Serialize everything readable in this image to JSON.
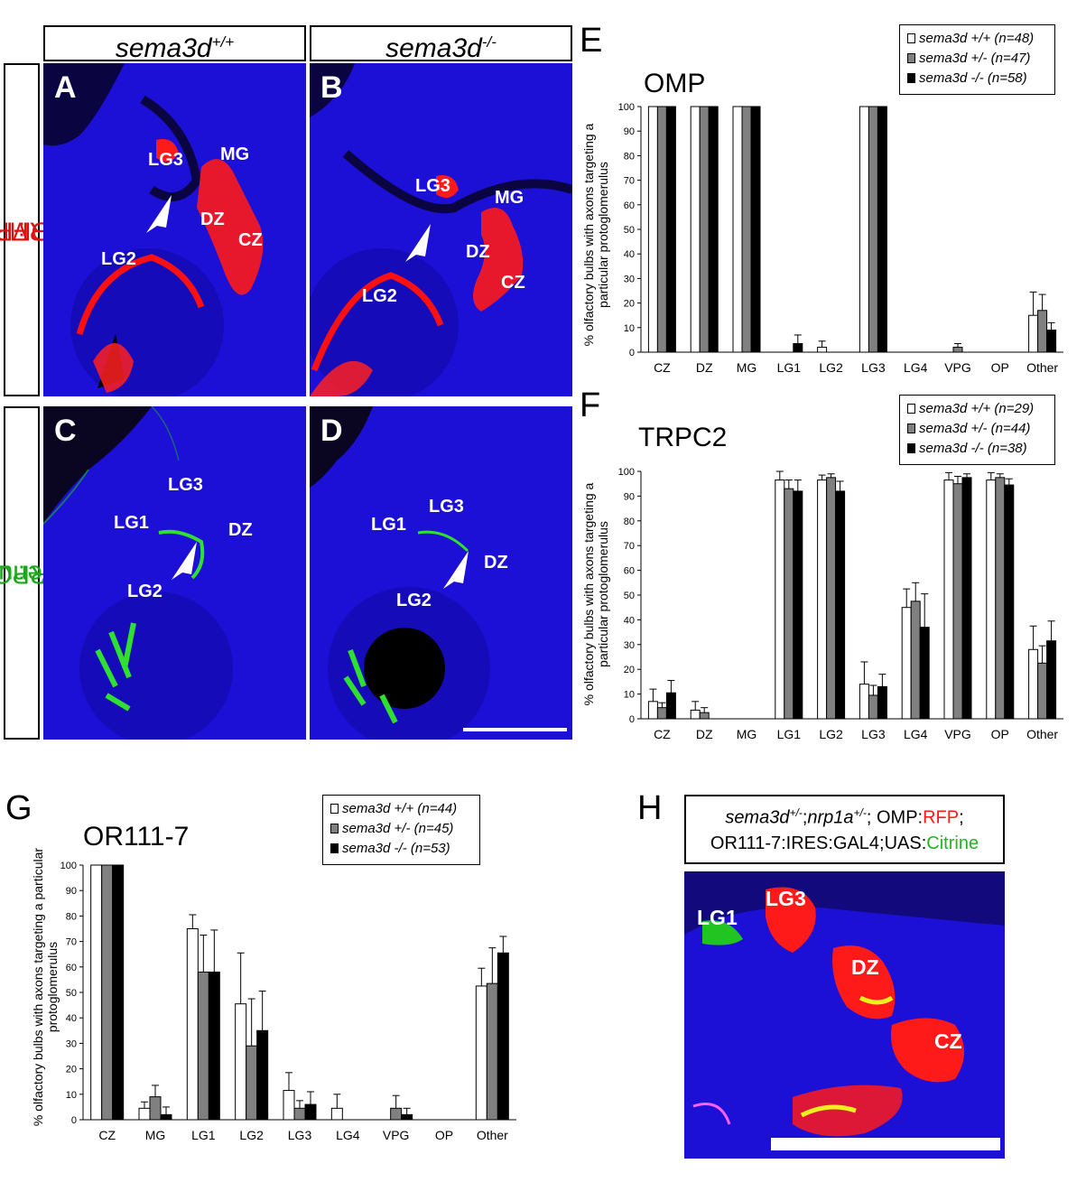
{
  "headers": {
    "wt": {
      "base": "sema3d",
      "sup": "+/+"
    },
    "mut": {
      "base": "sema3d",
      "sup": "-/-"
    }
  },
  "side_labels": {
    "omp": {
      "name": "OMP",
      "sep": ":",
      "reporter": "RFP"
    },
    "trpc2": {
      "name": "TRPC2",
      "sep": ":",
      "reporter": "Venus"
    }
  },
  "panels": {
    "A": {
      "letter": "A",
      "labels": [
        "LG3",
        "MG",
        "DZ",
        "CZ",
        "LG2"
      ]
    },
    "B": {
      "letter": "B",
      "labels": [
        "LG3",
        "MG",
        "DZ",
        "CZ",
        "LG2"
      ]
    },
    "C": {
      "letter": "C",
      "labels": [
        "LG3",
        "LG1",
        "DZ",
        "LG2"
      ]
    },
    "D": {
      "letter": "D",
      "labels": [
        "LG1",
        "LG3",
        "DZ",
        "LG2"
      ]
    },
    "E": {
      "letter": "E"
    },
    "F": {
      "letter": "F"
    },
    "G": {
      "letter": "G"
    },
    "H": {
      "letter": "H",
      "labels": [
        "LG1",
        "LG3",
        "DZ",
        "CZ"
      ]
    }
  },
  "panel_h_box": {
    "line1_gene1": "sema3d",
    "line1_sup1": "+/-",
    "line1_sep": ";",
    "line1_gene2": "nrp1a",
    "line1_sup2": "+/-",
    "line1_omp": "; OMP:",
    "line1_rfp": "RFP",
    "line1_end": ";",
    "line2_prefix": "OR111-7:IRES:GAL4;UAS:",
    "line2_citrine": "Citrine"
  },
  "colors": {
    "wt": "#ffffff",
    "het": "#808080",
    "hom": "#000000",
    "rfp": "#ff1a1a",
    "citrine": "#22b422",
    "tissue": "#1c0fd6"
  },
  "chart_data": [
    {
      "id": "E",
      "type": "bar",
      "title": "OMP",
      "ylabel": "% olfactory bulbs with axons targeting a particular protoglomerulus",
      "ylim": [
        0,
        100
      ],
      "yticks": [
        0,
        10,
        20,
        30,
        40,
        50,
        60,
        70,
        80,
        90,
        100
      ],
      "categories": [
        "CZ",
        "DZ",
        "MG",
        "LG1",
        "LG2",
        "LG3",
        "LG4",
        "VPG",
        "OP",
        "Other"
      ],
      "legend_position": "top-right",
      "series": [
        {
          "name": "sema3d +/+ (n=48)",
          "gene": "sema3d",
          "genotype": "+/+ (n=48)",
          "color": "#ffffff",
          "values": [
            100,
            100,
            100,
            0,
            2,
            100,
            0,
            0,
            0,
            15
          ],
          "errors": [
            0,
            0,
            0,
            0,
            2.5,
            0,
            0,
            0,
            0,
            9.5
          ]
        },
        {
          "name": "sema3d +/- (n=47)",
          "gene": "sema3d",
          "genotype": "+/- (n=47)",
          "color": "#808080",
          "values": [
            100,
            100,
            100,
            0,
            0,
            100,
            0,
            2,
            0,
            17
          ],
          "errors": [
            0,
            0,
            0,
            0,
            0,
            0,
            0,
            1.5,
            0,
            6.5
          ]
        },
        {
          "name": "sema3d -/- (n=58)",
          "gene": "sema3d",
          "genotype": "-/- (n=58)",
          "color": "#000000",
          "values": [
            100,
            100,
            100,
            3.5,
            0,
            100,
            0,
            0,
            0,
            9
          ],
          "errors": [
            0,
            0,
            0,
            3.5,
            0,
            0,
            0,
            0,
            0,
            3
          ]
        }
      ]
    },
    {
      "id": "F",
      "type": "bar",
      "title": "TRPC2",
      "ylabel": "% olfactory bulbs with axons targeting a particular protoglomerulus",
      "ylim": [
        0,
        100
      ],
      "yticks": [
        0,
        10,
        20,
        30,
        40,
        50,
        60,
        70,
        80,
        90,
        100
      ],
      "categories": [
        "CZ",
        "DZ",
        "MG",
        "LG1",
        "LG2",
        "LG3",
        "LG4",
        "VPG",
        "OP",
        "Other"
      ],
      "legend_position": "top-right",
      "series": [
        {
          "name": "sema3d +/+ (n=29)",
          "gene": "sema3d",
          "genotype": "+/+ (n=29)",
          "color": "#ffffff",
          "values": [
            7,
            3.5,
            0,
            96.5,
            96.5,
            14,
            45,
            96.5,
            96.5,
            28
          ],
          "errors": [
            5,
            3.5,
            0,
            3.5,
            2,
            9,
            7.5,
            3,
            3,
            9.5
          ]
        },
        {
          "name": "sema3d +/- (n=44)",
          "gene": "sema3d",
          "genotype": "+/- (n=44)",
          "color": "#808080",
          "values": [
            4.5,
            2.5,
            0,
            93,
            97.5,
            9.5,
            47.5,
            95,
            97.5,
            22.5
          ],
          "errors": [
            2,
            2,
            0,
            3.5,
            1.5,
            4,
            7.5,
            3,
            1.5,
            7
          ]
        },
        {
          "name": "sema3d -/- (n=38)",
          "gene": "sema3d",
          "genotype": "-/- (n=38)",
          "color": "#000000",
          "values": [
            10.5,
            0,
            0,
            92,
            92,
            13,
            37,
            97.5,
            94.5,
            31.5
          ],
          "errors": [
            5,
            0,
            0,
            4.5,
            4,
            5,
            13.5,
            1.5,
            2.5,
            8
          ]
        }
      ]
    },
    {
      "id": "G",
      "type": "bar",
      "title": "OR111-7",
      "ylabel": "% olfactory bulbs with axons targeting a particular protoglomerulus",
      "ylim": [
        0,
        100
      ],
      "yticks": [
        0,
        10,
        20,
        30,
        40,
        50,
        60,
        70,
        80,
        90,
        100
      ],
      "categories": [
        "CZ",
        "MG",
        "LG1",
        "LG2",
        "LG3",
        "LG4",
        "VPG",
        "OP",
        "Other"
      ],
      "legend_position": "top-right",
      "series": [
        {
          "name": "sema3d +/+ (n=44)",
          "gene": "sema3d",
          "genotype": "+/+ (n=44)",
          "color": "#ffffff",
          "values": [
            100,
            4.5,
            75,
            45.5,
            11.5,
            4.5,
            0,
            0,
            52.5
          ],
          "errors": [
            0,
            2.5,
            5.5,
            20,
            7,
            5.5,
            0,
            0,
            7
          ]
        },
        {
          "name": "sema3d +/- (n=45)",
          "gene": "sema3d",
          "genotype": "+/- (n=45)",
          "color": "#808080",
          "values": [
            100,
            9,
            58,
            29,
            4.5,
            0,
            4.5,
            0,
            53.5
          ],
          "errors": [
            0,
            4.5,
            14.5,
            18.5,
            3,
            0,
            5,
            0,
            14
          ]
        },
        {
          "name": "sema3d -/- (n=53)",
          "gene": "sema3d",
          "genotype": "-/- (n=53)",
          "color": "#000000",
          "values": [
            100,
            2,
            58,
            35,
            6,
            0,
            2,
            0,
            65.5
          ],
          "errors": [
            0,
            3,
            16.5,
            15.5,
            5,
            0,
            2.5,
            0,
            6.5
          ]
        }
      ]
    }
  ]
}
